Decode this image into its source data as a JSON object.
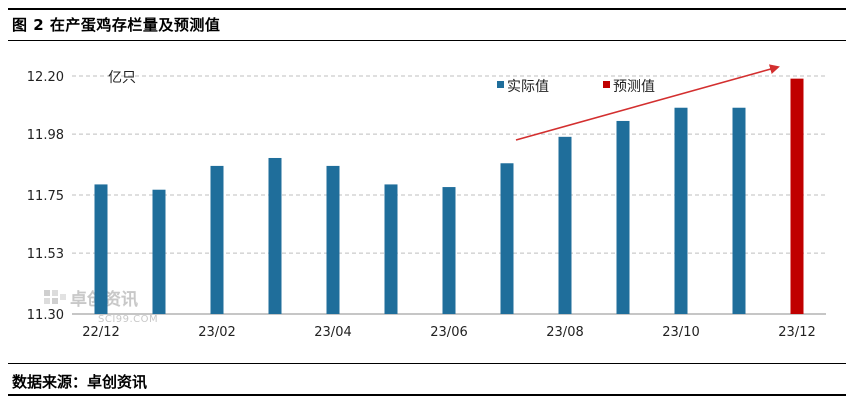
{
  "header": {
    "title": "图 2  在产蛋鸡存栏量及预测值"
  },
  "footer": {
    "source": "数据来源：卓创资讯"
  },
  "watermark": {
    "name": "卓创资讯",
    "site": "SCI99.COM"
  },
  "colors": {
    "actual": "#1f6e9b",
    "forecast": "#c00000",
    "arrow": "#d32f2f",
    "grid": "#bfbfbf"
  },
  "chart_data": {
    "type": "bar",
    "unit_label": "亿只",
    "categories": [
      "22/12",
      "23/01",
      "23/02",
      "23/03",
      "23/04",
      "23/05",
      "23/06",
      "23/07",
      "23/08",
      "23/09",
      "23/10",
      "23/11",
      "23/12"
    ],
    "x_tick_labels": [
      "22/12",
      "",
      "23/02",
      "",
      "23/04",
      "",
      "23/06",
      "",
      "23/08",
      "",
      "23/10",
      "",
      "23/12"
    ],
    "series": [
      {
        "name": "实际值",
        "color": "#1f6e9b",
        "values": [
          11.79,
          11.77,
          11.86,
          11.89,
          11.86,
          11.79,
          11.78,
          11.87,
          11.97,
          12.03,
          12.08,
          12.08,
          null
        ]
      },
      {
        "name": "预测值",
        "color": "#c00000",
        "values": [
          null,
          null,
          null,
          null,
          null,
          null,
          null,
          null,
          null,
          null,
          null,
          null,
          12.19
        ]
      }
    ],
    "ylim": [
      11.3,
      12.2
    ],
    "yticks": [
      11.3,
      11.53,
      11.75,
      11.98,
      12.2
    ],
    "ytick_labels": [
      "11.30",
      "11.53",
      "11.75",
      "11.98",
      "12.20"
    ],
    "grid": true,
    "legend_position": "top-right",
    "annotation": "upward trend arrow from 23/07 to 23/12"
  }
}
